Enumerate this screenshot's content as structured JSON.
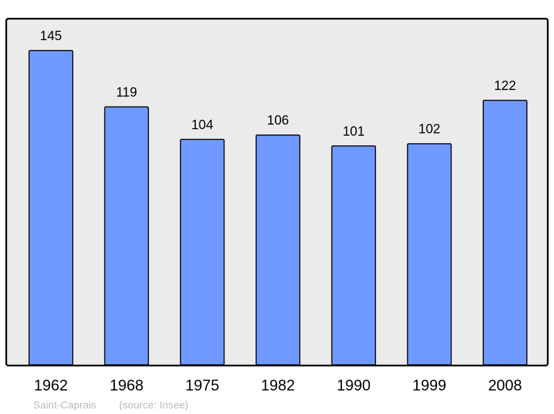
{
  "chart_data": {
    "type": "bar",
    "categories": [
      "1962",
      "1968",
      "1975",
      "1982",
      "1990",
      "1999",
      "2008"
    ],
    "values": [
      145,
      119,
      104,
      106,
      101,
      102,
      122
    ],
    "ylim": [
      0,
      160
    ],
    "grid": false,
    "title": "",
    "xlabel": "",
    "ylabel": "",
    "colors": {
      "bar": "#7099ff",
      "plot_background": "#ebebeb",
      "frame": "#000000"
    }
  },
  "footer": {
    "place": "Saint-Caprais",
    "source": "(source: Insee)"
  }
}
